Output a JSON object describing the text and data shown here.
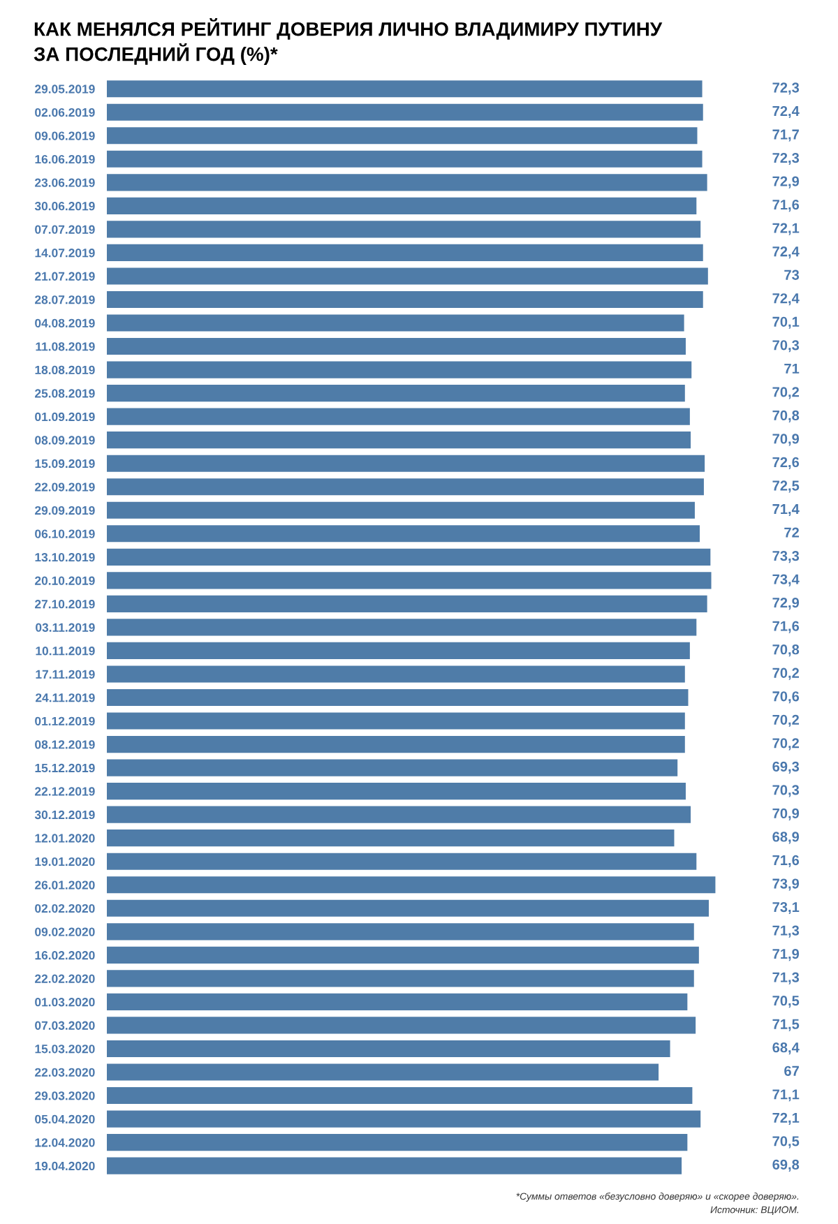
{
  "chart_data": {
    "type": "bar",
    "orientation": "horizontal",
    "title": "КАК МЕНЯЛСЯ РЕЙТИНГ ДОВЕРИЯ ЛИЧНО ВЛАДИМИРУ ПУТИНУ\nЗА ПОСЛЕДНИЙ ГОД (%)*",
    "categories": [
      "29.05.2019",
      "02.06.2019",
      "09.06.2019",
      "16.06.2019",
      "23.06.2019",
      "30.06.2019",
      "07.07.2019",
      "14.07.2019",
      "21.07.2019",
      "28.07.2019",
      "04.08.2019",
      "11.08.2019",
      "18.08.2019",
      "25.08.2019",
      "01.09.2019",
      "08.09.2019",
      "15.09.2019",
      "22.09.2019",
      "29.09.2019",
      "06.10.2019",
      "13.10.2019",
      "20.10.2019",
      "27.10.2019",
      "03.11.2019",
      "10.11.2019",
      "17.11.2019",
      "24.11.2019",
      "01.12.2019",
      "08.12.2019",
      "15.12.2019",
      "22.12.2019",
      "30.12.2019",
      "12.01.2020",
      "19.01.2020",
      "26.01.2020",
      "02.02.2020",
      "09.02.2020",
      "16.02.2020",
      "22.02.2020",
      "01.03.2020",
      "07.03.2020",
      "15.03.2020",
      "22.03.2020",
      "29.03.2020",
      "05.04.2020",
      "12.04.2020",
      "19.04.2020"
    ],
    "values": [
      72.3,
      72.4,
      71.7,
      72.3,
      72.9,
      71.6,
      72.1,
      72.4,
      73,
      72.4,
      70.1,
      70.3,
      71,
      70.2,
      70.8,
      70.9,
      72.6,
      72.5,
      71.4,
      72,
      73.3,
      73.4,
      72.9,
      71.6,
      70.8,
      70.2,
      70.6,
      70.2,
      70.2,
      69.3,
      70.3,
      70.9,
      68.9,
      71.6,
      73.9,
      73.1,
      71.3,
      71.9,
      71.3,
      70.5,
      71.5,
      68.4,
      67,
      71.1,
      72.1,
      70.5,
      69.8
    ],
    "value_labels": [
      "72,3",
      "72,4",
      "71,7",
      "72,3",
      "72,9",
      "71,6",
      "72,1",
      "72,4",
      "73",
      "72,4",
      "70,1",
      "70,3",
      "71",
      "70,2",
      "70,8",
      "70,9",
      "72,6",
      "72,5",
      "71,4",
      "72",
      "73,3",
      "73,4",
      "72,9",
      "71,6",
      "70,8",
      "70,2",
      "70,6",
      "70,2",
      "70,2",
      "69,3",
      "70,3",
      "70,9",
      "68,9",
      "71,6",
      "73,9",
      "73,1",
      "71,3",
      "71,9",
      "71,3",
      "70,5",
      "71,5",
      "68,4",
      "67",
      "71,1",
      "72,1",
      "70,5",
      "69,8"
    ],
    "color": "#4f7ca8",
    "annotations": [
      "*Суммы ответов «безусловно доверяю» и «скорее доверяю».",
      "Источник: ВЦИОМ."
    ]
  }
}
